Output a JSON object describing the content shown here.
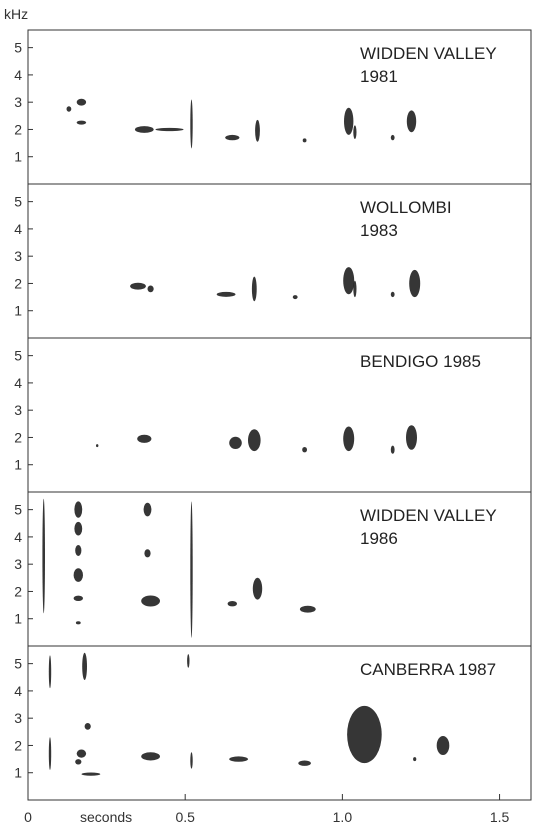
{
  "chart_data": {
    "type": "spectrogram",
    "y_unit_label": "kHz",
    "x_label": "seconds",
    "x_ticks": [
      {
        "value": 0,
        "label": "0"
      },
      {
        "value": 0.5,
        "label": "0.5"
      },
      {
        "value": 1.0,
        "label": "1.0"
      },
      {
        "value": 1.5,
        "label": "1.5"
      }
    ],
    "xlim": [
      0,
      1.6
    ],
    "ylim_khz": [
      0,
      5.5
    ],
    "y_ticks": [
      1,
      2,
      3,
      4,
      5
    ],
    "panels": [
      {
        "label_lines": [
          "WIDDEN VALLEY",
          "1981"
        ],
        "notes": [
          {
            "t": 0.13,
            "f": 2.75,
            "dt": 0.015,
            "df": 0.2
          },
          {
            "t": 0.17,
            "f": 3.0,
            "dt": 0.03,
            "df": 0.25
          },
          {
            "t": 0.17,
            "f": 2.25,
            "dt": 0.03,
            "df": 0.15
          },
          {
            "t": 0.37,
            "f": 2.0,
            "dt": 0.06,
            "df": 0.25
          },
          {
            "t": 0.45,
            "f": 2.0,
            "dt": 0.09,
            "df": 0.12
          },
          {
            "t": 0.52,
            "f": 2.2,
            "dt": 0.004,
            "df": 1.8
          },
          {
            "t": 0.65,
            "f": 1.7,
            "dt": 0.045,
            "df": 0.2
          },
          {
            "t": 0.73,
            "f": 1.95,
            "dt": 0.015,
            "df": 0.8
          },
          {
            "t": 0.88,
            "f": 1.6,
            "dt": 0.012,
            "df": 0.15
          },
          {
            "t": 1.02,
            "f": 2.3,
            "dt": 0.03,
            "df": 1.0
          },
          {
            "t": 1.04,
            "f": 1.9,
            "dt": 0.01,
            "df": 0.5
          },
          {
            "t": 1.16,
            "f": 1.7,
            "dt": 0.012,
            "df": 0.2
          },
          {
            "t": 1.22,
            "f": 2.3,
            "dt": 0.03,
            "df": 0.8
          }
        ]
      },
      {
        "label_lines": [
          "WOLLOMBI",
          "1983"
        ],
        "notes": [
          {
            "t": 0.35,
            "f": 1.9,
            "dt": 0.05,
            "df": 0.25
          },
          {
            "t": 0.39,
            "f": 1.8,
            "dt": 0.02,
            "df": 0.25
          },
          {
            "t": 0.63,
            "f": 1.6,
            "dt": 0.06,
            "df": 0.18
          },
          {
            "t": 0.72,
            "f": 1.8,
            "dt": 0.015,
            "df": 0.9
          },
          {
            "t": 0.85,
            "f": 1.5,
            "dt": 0.015,
            "df": 0.15
          },
          {
            "t": 1.02,
            "f": 2.1,
            "dt": 0.035,
            "df": 1.0
          },
          {
            "t": 1.04,
            "f": 1.8,
            "dt": 0.01,
            "df": 0.6
          },
          {
            "t": 1.16,
            "f": 1.6,
            "dt": 0.012,
            "df": 0.2
          },
          {
            "t": 1.23,
            "f": 2.0,
            "dt": 0.035,
            "df": 1.0
          }
        ]
      },
      {
        "label_lines": [
          "BENDIGO 1985"
        ],
        "notes": [
          {
            "t": 0.22,
            "f": 1.7,
            "dt": 0.003,
            "df": 0.1
          },
          {
            "t": 0.37,
            "f": 1.95,
            "dt": 0.045,
            "df": 0.3
          },
          {
            "t": 0.66,
            "f": 1.8,
            "dt": 0.04,
            "df": 0.45
          },
          {
            "t": 0.72,
            "f": 1.9,
            "dt": 0.04,
            "df": 0.8
          },
          {
            "t": 0.88,
            "f": 1.55,
            "dt": 0.015,
            "df": 0.2
          },
          {
            "t": 1.02,
            "f": 1.95,
            "dt": 0.035,
            "df": 0.9
          },
          {
            "t": 1.16,
            "f": 1.55,
            "dt": 0.012,
            "df": 0.3
          },
          {
            "t": 1.22,
            "f": 2.0,
            "dt": 0.035,
            "df": 0.9
          }
        ]
      },
      {
        "label_lines": [
          "WIDDEN VALLEY",
          "1986"
        ],
        "notes": [
          {
            "t": 0.05,
            "f": 3.3,
            "dt": 0.008,
            "df": 4.2
          },
          {
            "t": 0.16,
            "f": 5.0,
            "dt": 0.025,
            "df": 0.6
          },
          {
            "t": 0.16,
            "f": 4.3,
            "dt": 0.025,
            "df": 0.5
          },
          {
            "t": 0.16,
            "f": 3.5,
            "dt": 0.02,
            "df": 0.4
          },
          {
            "t": 0.16,
            "f": 2.6,
            "dt": 0.03,
            "df": 0.5
          },
          {
            "t": 0.16,
            "f": 1.75,
            "dt": 0.03,
            "df": 0.2
          },
          {
            "t": 0.16,
            "f": 0.85,
            "dt": 0.015,
            "df": 0.12
          },
          {
            "t": 0.38,
            "f": 5.0,
            "dt": 0.025,
            "df": 0.5
          },
          {
            "t": 0.38,
            "f": 3.4,
            "dt": 0.02,
            "df": 0.3
          },
          {
            "t": 0.39,
            "f": 1.65,
            "dt": 0.06,
            "df": 0.4
          },
          {
            "t": 0.52,
            "f": 2.8,
            "dt": 0.004,
            "df": 5.0
          },
          {
            "t": 0.65,
            "f": 1.55,
            "dt": 0.03,
            "df": 0.2
          },
          {
            "t": 0.73,
            "f": 2.1,
            "dt": 0.03,
            "df": 0.8
          },
          {
            "t": 0.89,
            "f": 1.35,
            "dt": 0.05,
            "df": 0.25
          }
        ]
      },
      {
        "label_lines": [
          "CANBERRA 1987"
        ],
        "notes": [
          {
            "t": 0.07,
            "f": 4.7,
            "dt": 0.005,
            "df": 1.2
          },
          {
            "t": 0.07,
            "f": 1.7,
            "dt": 0.006,
            "df": 1.2
          },
          {
            "t": 0.18,
            "f": 4.9,
            "dt": 0.015,
            "df": 1.0
          },
          {
            "t": 0.19,
            "f": 2.7,
            "dt": 0.02,
            "df": 0.25
          },
          {
            "t": 0.17,
            "f": 1.7,
            "dt": 0.03,
            "df": 0.3
          },
          {
            "t": 0.16,
            "f": 1.4,
            "dt": 0.02,
            "df": 0.2
          },
          {
            "t": 0.2,
            "f": 0.95,
            "dt": 0.06,
            "df": 0.12
          },
          {
            "t": 0.39,
            "f": 1.6,
            "dt": 0.06,
            "df": 0.3
          },
          {
            "t": 0.51,
            "f": 5.1,
            "dt": 0.004,
            "df": 0.5
          },
          {
            "t": 0.52,
            "f": 1.45,
            "dt": 0.005,
            "df": 0.6
          },
          {
            "t": 0.67,
            "f": 1.5,
            "dt": 0.06,
            "df": 0.2
          },
          {
            "t": 0.88,
            "f": 1.35,
            "dt": 0.04,
            "df": 0.2
          },
          {
            "t": 1.07,
            "f": 2.4,
            "dt": 0.11,
            "df": 2.1
          },
          {
            "t": 1.23,
            "f": 1.5,
            "dt": 0.01,
            "df": 0.15
          },
          {
            "t": 1.32,
            "f": 2.0,
            "dt": 0.04,
            "df": 0.7
          }
        ]
      }
    ]
  }
}
